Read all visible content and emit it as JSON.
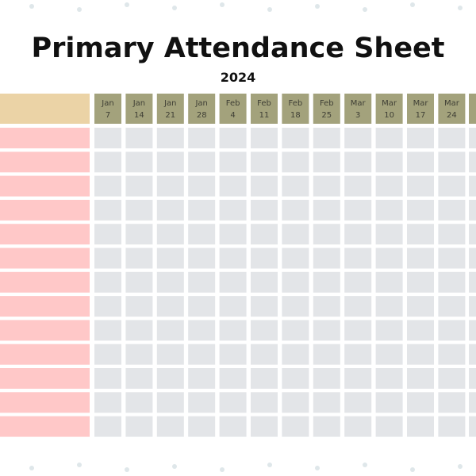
{
  "header": {
    "title": "Primary Attendance Sheet",
    "year": "2024"
  },
  "columns": [
    {
      "month": "Jan",
      "day": "7"
    },
    {
      "month": "Jan",
      "day": "14"
    },
    {
      "month": "Jan",
      "day": "21"
    },
    {
      "month": "Jan",
      "day": "28"
    },
    {
      "month": "Feb",
      "day": "4"
    },
    {
      "month": "Feb",
      "day": "11"
    },
    {
      "month": "Feb",
      "day": "18"
    },
    {
      "month": "Feb",
      "day": "25"
    },
    {
      "month": "Mar",
      "day": "3"
    },
    {
      "month": "Mar",
      "day": "10"
    },
    {
      "month": "Mar",
      "day": "17"
    },
    {
      "month": "Mar",
      "day": "24"
    }
  ]
}
